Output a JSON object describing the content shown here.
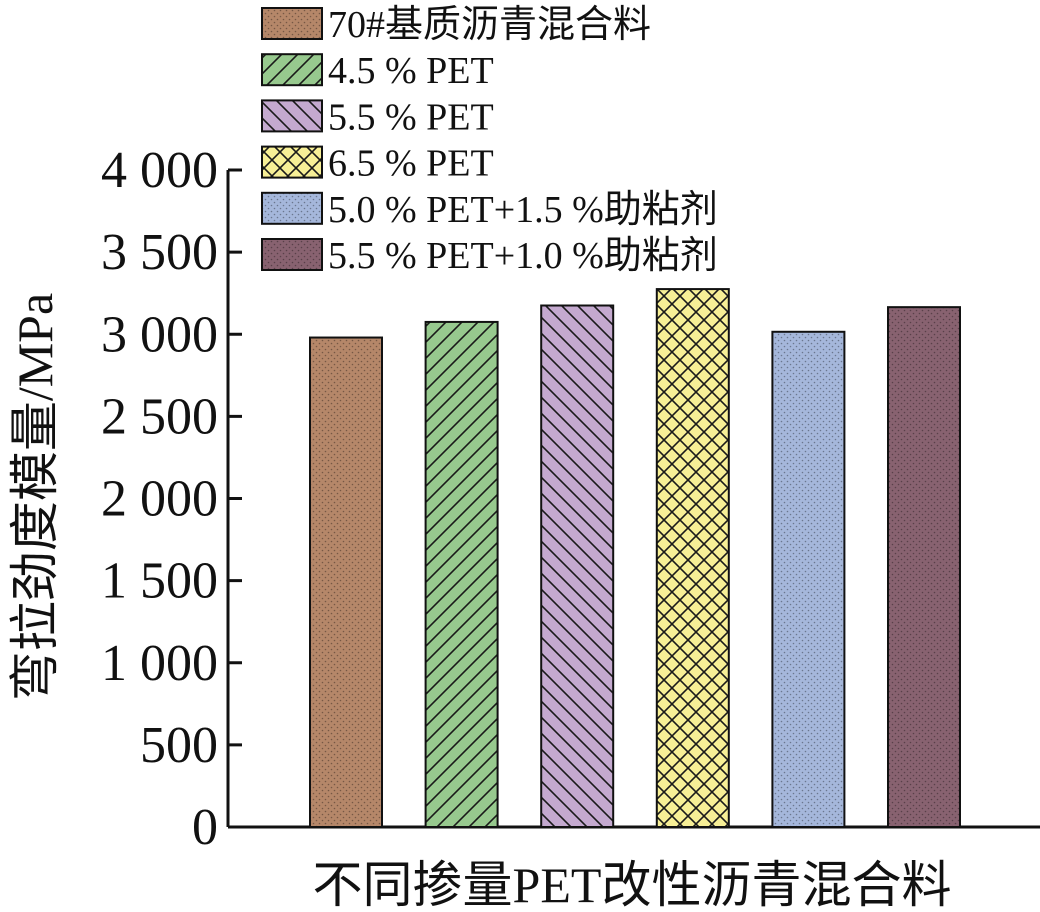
{
  "chart_data": {
    "type": "bar",
    "title": "",
    "xlabel": "不同掺量PET改性沥青混合料",
    "ylabel": "弯拉劲度模量/MPa",
    "ylim": [
      0,
      4000
    ],
    "yticks": [
      0,
      500,
      1000,
      1500,
      2000,
      2500,
      3000,
      3500,
      4000
    ],
    "ytick_labels": [
      "0",
      "500",
      "1 000",
      "1 500",
      "2 000",
      "2 500",
      "3 000",
      "3 500",
      "4 000"
    ],
    "grid": false,
    "legend_position": "top",
    "categories": [
      "70#基质沥青混合料",
      "4.5 % PET",
      "5.5 % PET",
      "6.5 % PET",
      "5.0 % PET+1.5 %助粘剂",
      "5.5 % PET+1.0 %助粘剂"
    ],
    "values": [
      2980,
      3075,
      3175,
      3275,
      3015,
      3165
    ],
    "series_styles": [
      {
        "color": "#b58769",
        "pattern": "dots"
      },
      {
        "color": "#97c98e",
        "pattern": "hatch-forward"
      },
      {
        "color": "#c4a9cf",
        "pattern": "hatch-back"
      },
      {
        "color": "#f7ef96",
        "pattern": "crosshatch"
      },
      {
        "color": "#a5b7db",
        "pattern": "dots"
      },
      {
        "color": "#886270",
        "pattern": "dots"
      }
    ]
  }
}
